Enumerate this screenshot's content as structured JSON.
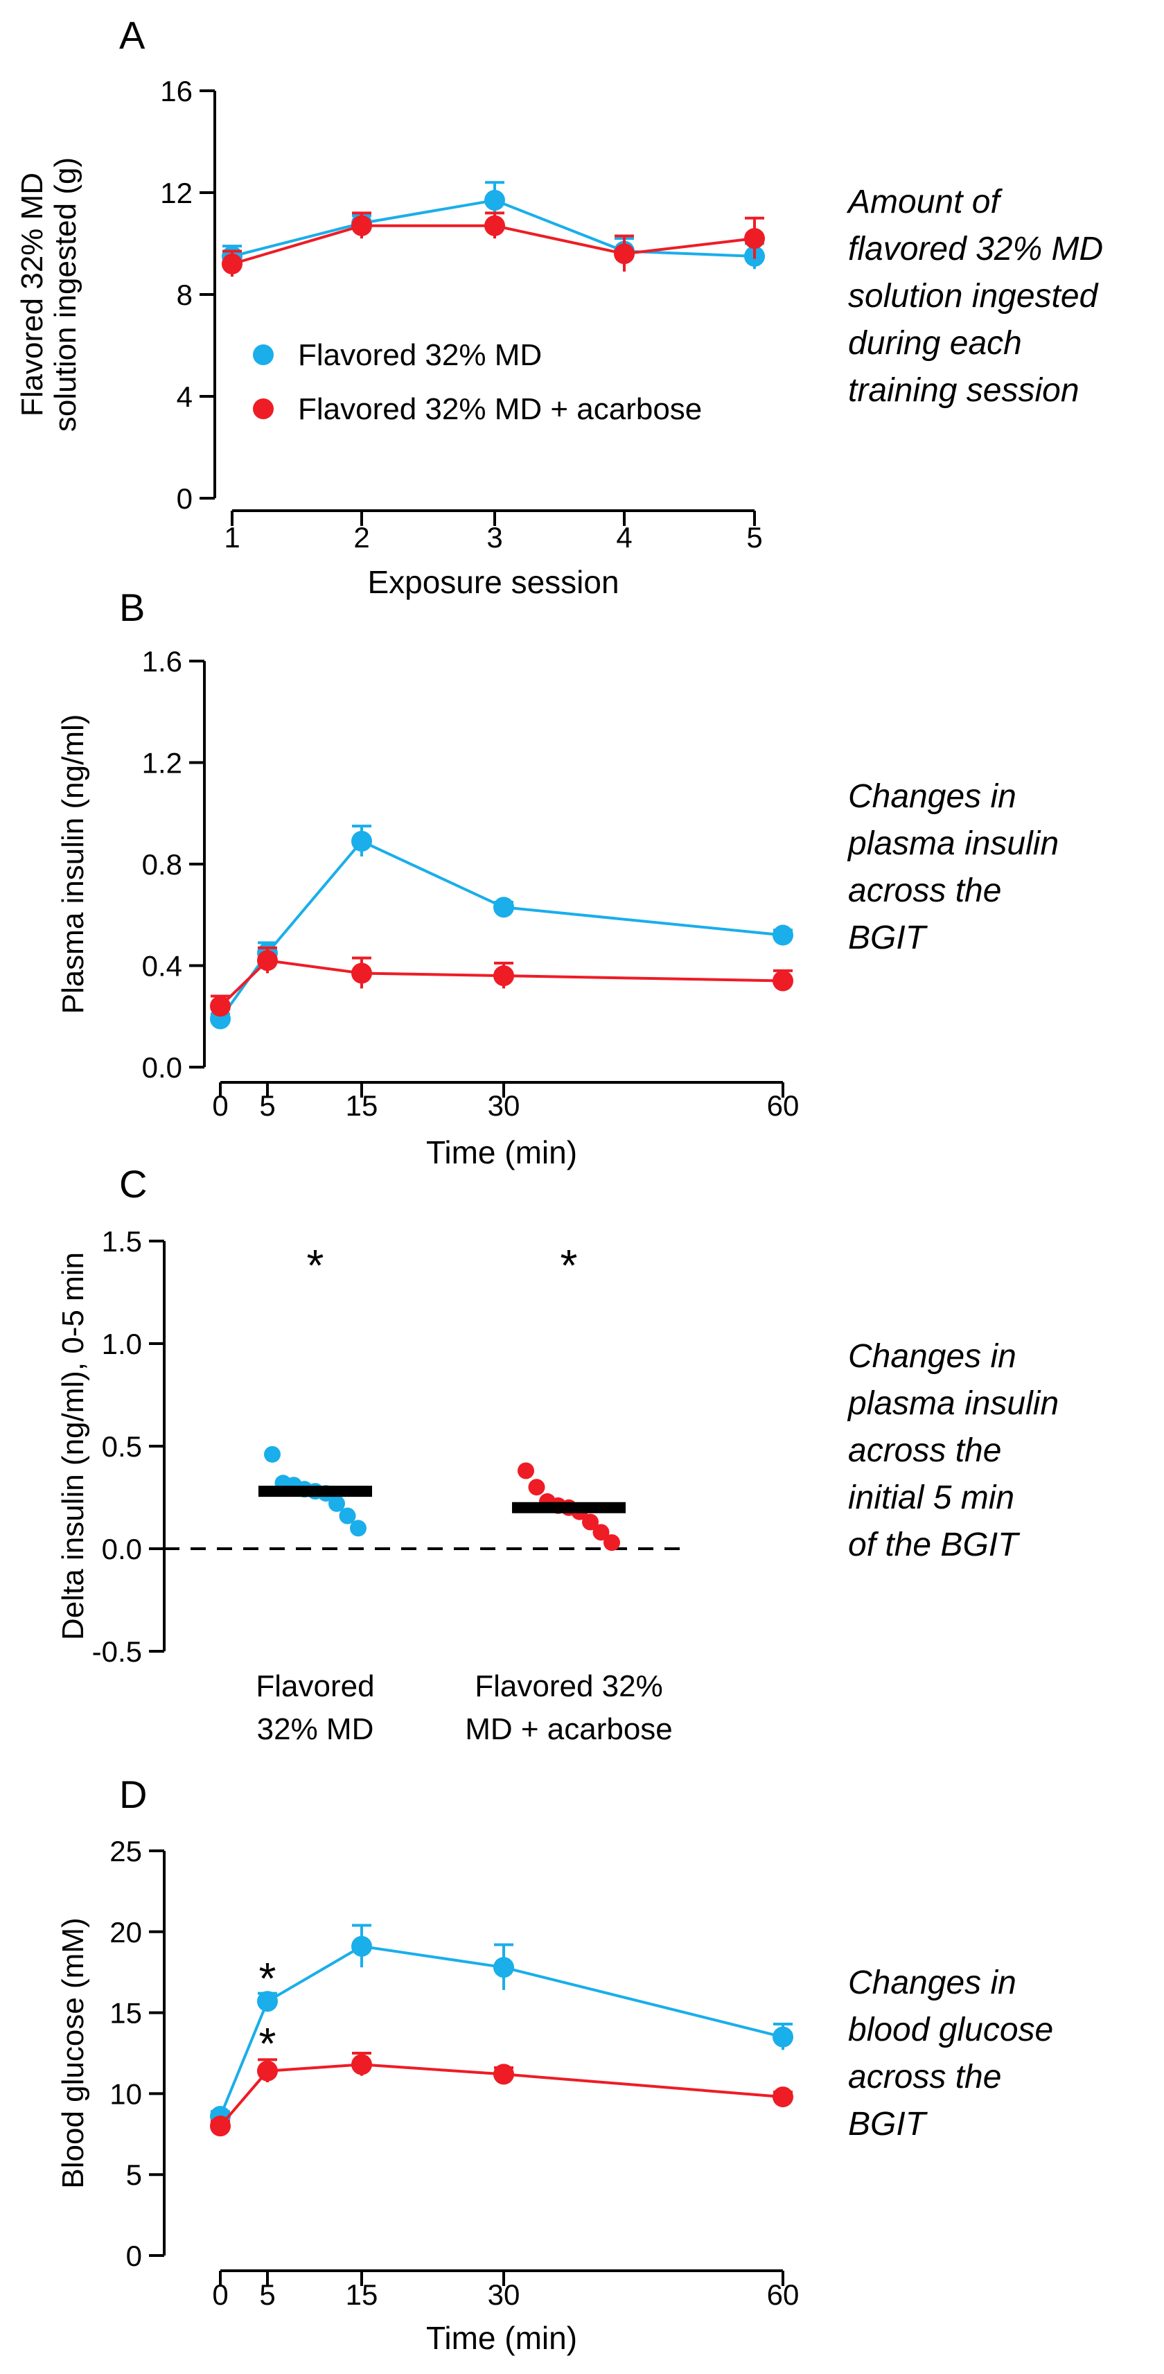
{
  "colors": {
    "md": "#1aaeea",
    "acarbose": "#ee1c25",
    "axis": "#000000"
  },
  "chart_data": [
    {
      "panel": "A",
      "type": "line",
      "caption": [
        "Amount of",
        "flavored 32% MD",
        "solution ingested",
        "during each",
        "training session"
      ],
      "xlabel": "Exposure session",
      "ylabel": [
        "Flavored 32% MD",
        "solution ingested (g)"
      ],
      "x": [
        1,
        2,
        3,
        4,
        5
      ],
      "xticks": [
        "1",
        "2",
        "3",
        "4",
        "5"
      ],
      "ylim": [
        0,
        16
      ],
      "yticks": [
        "0",
        "4",
        "8",
        "12",
        "16"
      ],
      "legend_position": "center-left",
      "series": [
        {
          "name": "Flavored 32% MD",
          "color_key": "md",
          "values": [
            9.5,
            10.8,
            11.7,
            9.7,
            9.5
          ],
          "err": [
            0.4,
            0.3,
            0.7,
            0.5,
            0.5
          ]
        },
        {
          "name": "Flavored 32% MD + acarbose",
          "color_key": "acarbose",
          "values": [
            9.2,
            10.7,
            10.7,
            9.6,
            10.2
          ],
          "err": [
            0.5,
            0.5,
            0.5,
            0.7,
            0.8
          ]
        }
      ]
    },
    {
      "panel": "B",
      "type": "line",
      "caption": [
        "Changes in",
        "plasma insulin",
        "across the",
        "BGIT"
      ],
      "xlabel": "Time (min)",
      "ylabel": [
        "Plasma insulin (ng/ml)"
      ],
      "x": [
        0,
        5,
        15,
        30,
        60
      ],
      "xticks": [
        "0",
        "5",
        "15",
        "30",
        "60"
      ],
      "ylim": [
        0,
        1.6
      ],
      "yticks": [
        "0.0",
        "0.4",
        "0.8",
        "1.2",
        "1.6"
      ],
      "series": [
        {
          "name": "Flavored 32% MD",
          "color_key": "md",
          "values": [
            0.19,
            0.45,
            0.89,
            0.63,
            0.52
          ],
          "err": [
            0.02,
            0.04,
            0.06,
            0.02,
            0.02
          ]
        },
        {
          "name": "Flavored 32% MD + acarbose",
          "color_key": "acarbose",
          "values": [
            0.24,
            0.42,
            0.37,
            0.36,
            0.34
          ],
          "err": [
            0.04,
            0.05,
            0.06,
            0.05,
            0.04
          ]
        }
      ]
    },
    {
      "panel": "C",
      "type": "scatter",
      "caption": [
        "Changes in",
        "plasma insulin",
        "across the",
        "initial 5 min",
        "of the BGIT"
      ],
      "ylabel": [
        "Delta insulin (ng/ml), 0-5 min"
      ],
      "ylim": [
        -0.5,
        1.5
      ],
      "yticks": [
        "-0.5",
        "0.0",
        "0.5",
        "1.0",
        "1.5"
      ],
      "reference_line": 0,
      "groups": [
        {
          "label": [
            "Flavored",
            "32% MD"
          ],
          "color_key": "md",
          "mean": 0.28,
          "points": [
            0.46,
            0.32,
            0.31,
            0.29,
            0.28,
            0.27,
            0.22,
            0.16,
            0.1
          ],
          "significance": "*"
        },
        {
          "label": [
            "Flavored 32%",
            "MD + acarbose"
          ],
          "color_key": "acarbose",
          "mean": 0.2,
          "points": [
            0.38,
            0.3,
            0.23,
            0.21,
            0.2,
            0.18,
            0.13,
            0.08,
            0.03
          ],
          "significance": "*"
        }
      ]
    },
    {
      "panel": "D",
      "type": "line",
      "caption": [
        "Changes in",
        "blood glucose",
        "across the",
        "BGIT"
      ],
      "xlabel": "Time (min)",
      "ylabel": [
        "Blood glucose (mM)"
      ],
      "x": [
        0,
        5,
        15,
        30,
        60
      ],
      "xticks": [
        "0",
        "5",
        "15",
        "30",
        "60"
      ],
      "ylim": [
        0,
        25
      ],
      "yticks": [
        "0",
        "5",
        "10",
        "15",
        "20",
        "25"
      ],
      "significance": [
        {
          "x": 5,
          "symbol": "*"
        },
        {
          "x": 5,
          "symbol": "*"
        }
      ],
      "series": [
        {
          "name": "Flavored 32% MD",
          "color_key": "md",
          "values": [
            8.6,
            15.7,
            19.1,
            17.8,
            13.5
          ],
          "err": [
            0.3,
            0.5,
            1.3,
            1.4,
            0.8
          ]
        },
        {
          "name": "Flavored 32% MD + acarbose",
          "color_key": "acarbose",
          "values": [
            8.0,
            11.4,
            11.8,
            11.2,
            9.8
          ],
          "err": [
            0.3,
            0.7,
            0.7,
            0.4,
            0.3
          ]
        }
      ]
    }
  ]
}
